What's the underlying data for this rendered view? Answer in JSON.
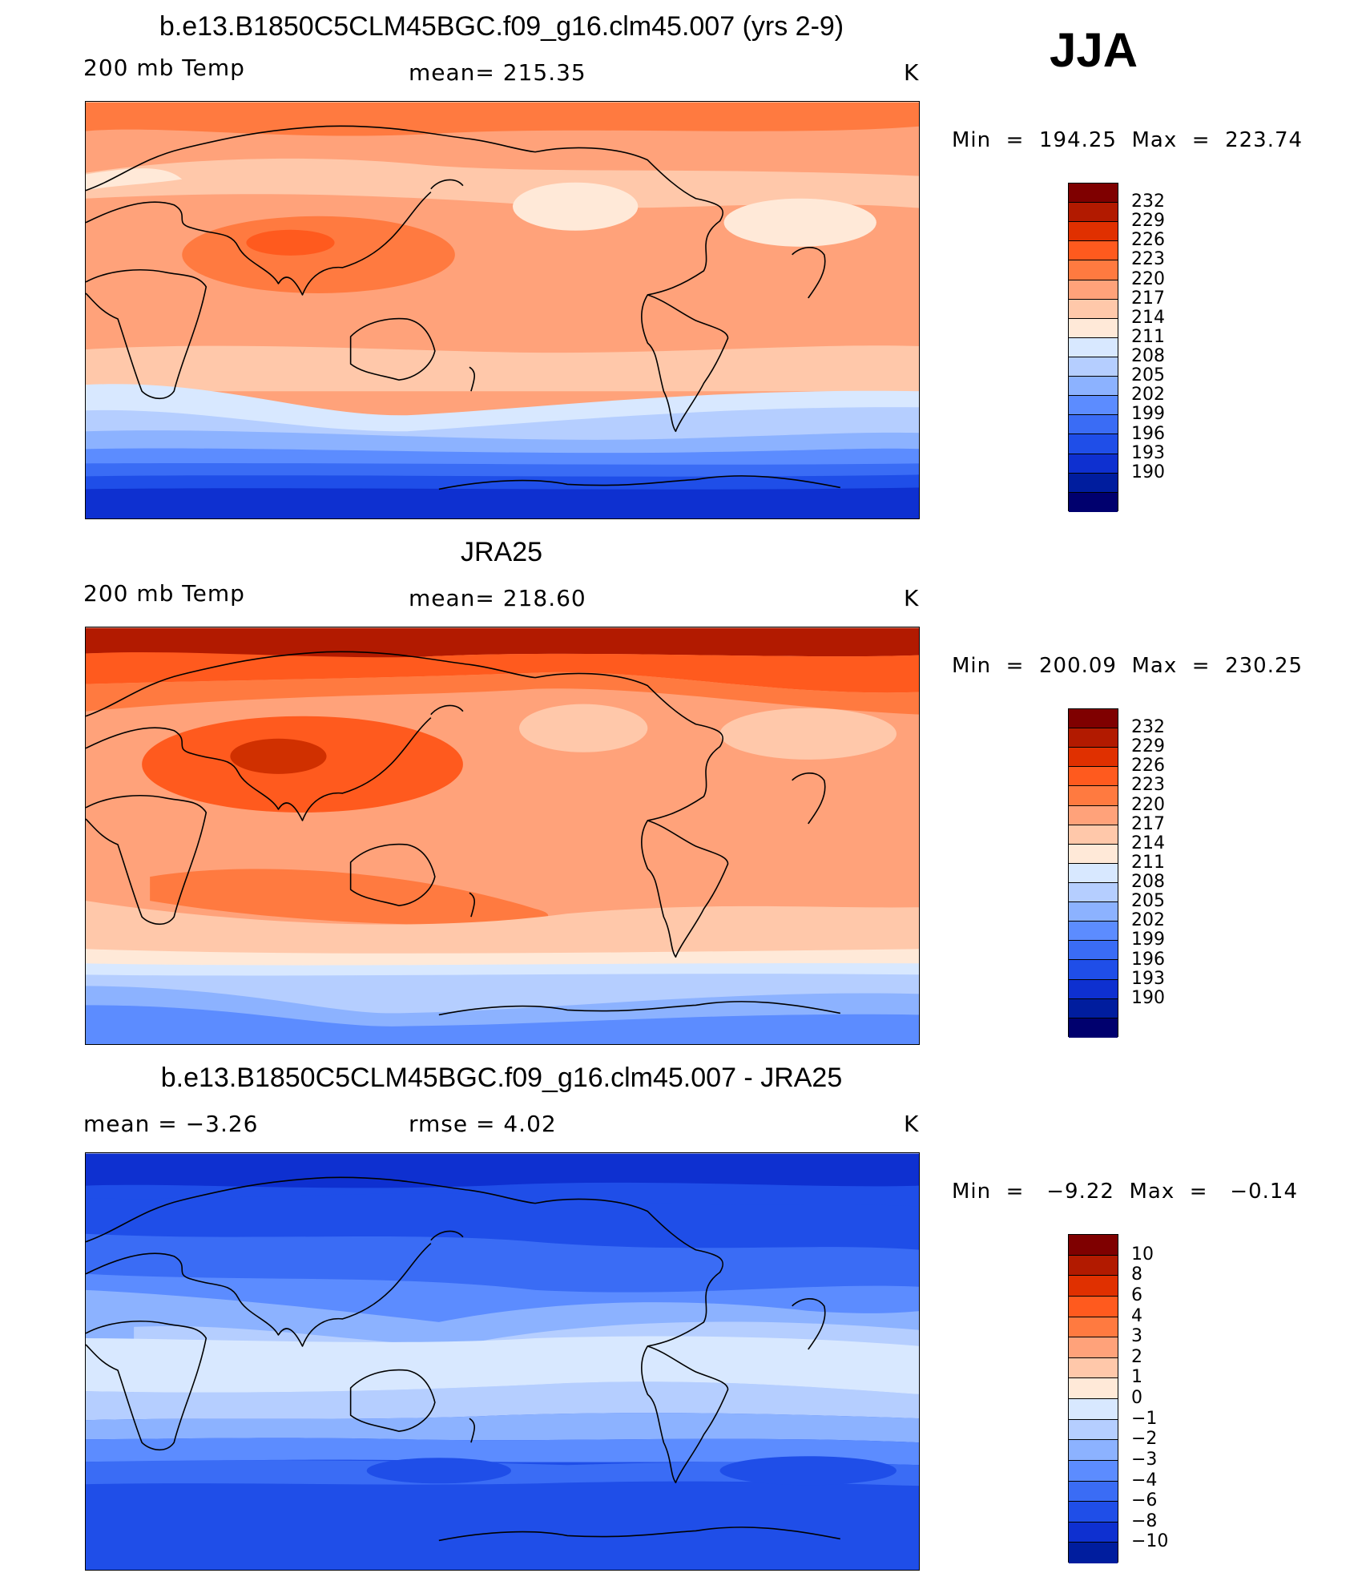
{
  "season": "JJA",
  "units": "K",
  "panels": [
    {
      "title": "b.e13.B1850C5CLM45BGC.f09_g16.clm45.007 (yrs 2-9)",
      "left": "200 mb Temp",
      "center": "mean=  215.35",
      "right": "K",
      "minmax": "Min  =  194.25  Max  =  223.74"
    },
    {
      "title": "JRA25",
      "left": "200 mb Temp",
      "center": "mean=  218.60",
      "right": "K",
      "minmax": "Min  =  200.09  Max  =  230.25"
    },
    {
      "title": "b.e13.B1850C5CLM45BGC.f09_g16.clm45.007 - JRA25",
      "left": "mean  =    −3.26",
      "center": "rmse  =     4.02",
      "right": "K",
      "minmax": "Min  =   −9.22  Max  =   −0.14"
    }
  ],
  "colorbars": {
    "abs": {
      "colors": [
        "#7f0000",
        "#b21a00",
        "#e03000",
        "#ff5a1e",
        "#ff7a40",
        "#ffa27a",
        "#ffc8aa",
        "#ffe9d8",
        "#d8e8ff",
        "#b5ceff",
        "#8cb2ff",
        "#5c8cff",
        "#3a6cf5",
        "#1f4ee8",
        "#0e30d0",
        "#001d9e",
        "#00006e"
      ],
      "labels": [
        "232",
        "229",
        "226",
        "223",
        "220",
        "217",
        "214",
        "211",
        "208",
        "205",
        "202",
        "199",
        "196",
        "193",
        "190"
      ]
    },
    "diff": {
      "colors": [
        "#7f0000",
        "#b21a00",
        "#e03000",
        "#ff5a1e",
        "#ff7a40",
        "#ffa27a",
        "#ffc8aa",
        "#ffe9d8",
        "#d8e8ff",
        "#b5ceff",
        "#8cb2ff",
        "#5c8cff",
        "#3a6cf5",
        "#1f4ee8",
        "#0e30d0",
        "#001d9e"
      ],
      "labels": [
        "10",
        "8",
        "6",
        "4",
        "3",
        "2",
        "1",
        "0",
        "−1",
        "−2",
        "−3",
        "−4",
        "−6",
        "−8",
        "−10"
      ]
    }
  }
}
